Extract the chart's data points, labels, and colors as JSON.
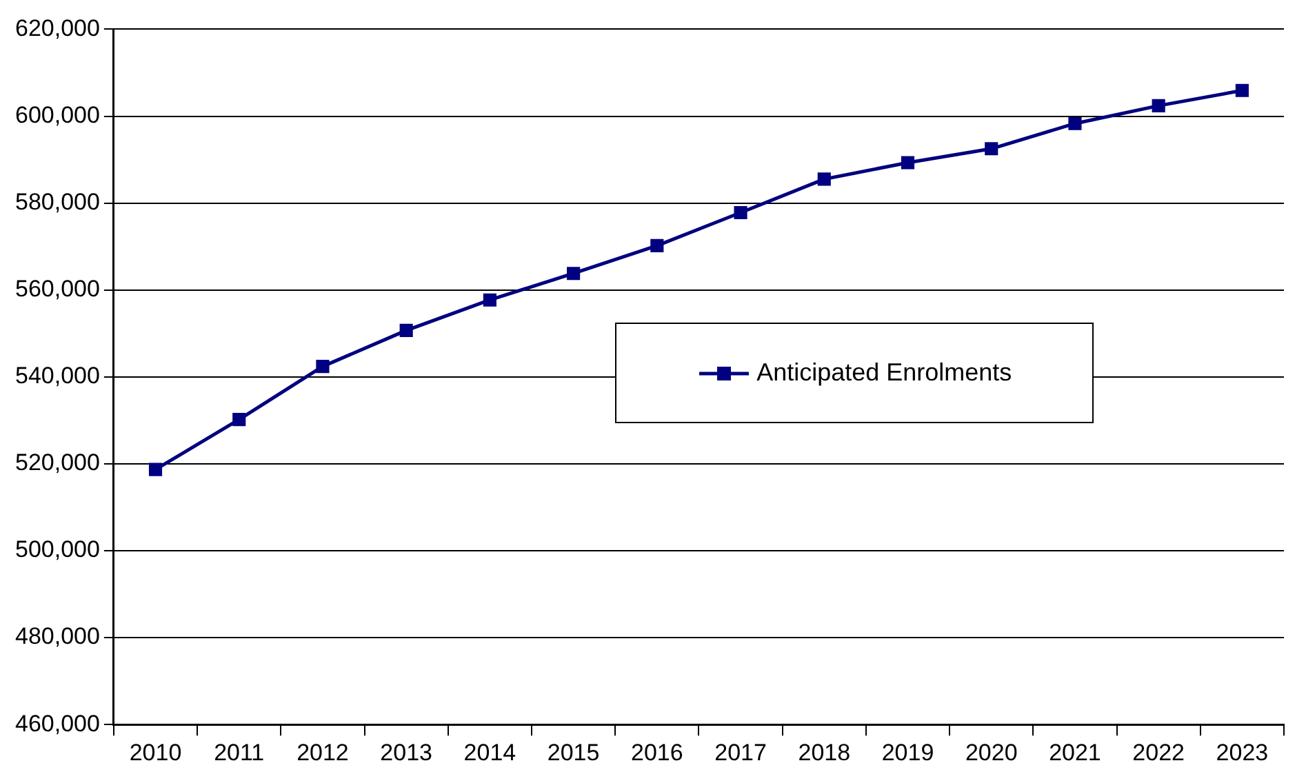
{
  "chart_data": {
    "type": "line",
    "categories": [
      "2010",
      "2011",
      "2012",
      "2013",
      "2014",
      "2015",
      "2016",
      "2017",
      "2018",
      "2019",
      "2020",
      "2021",
      "2022",
      "2023"
    ],
    "series": [
      {
        "name": "Anticipated Enrolments",
        "color": "#000080",
        "values": [
          518700,
          530200,
          542400,
          550700,
          557700,
          563800,
          570200,
          577800,
          585500,
          589300,
          592500,
          598300,
          602400,
          605900
        ]
      }
    ],
    "ylim": [
      460000,
      620000
    ],
    "yticks": [
      {
        "value": 460000,
        "label": "460,000"
      },
      {
        "value": 480000,
        "label": "480,000"
      },
      {
        "value": 500000,
        "label": "500,000"
      },
      {
        "value": 520000,
        "label": "520,000"
      },
      {
        "value": 540000,
        "label": "540,000"
      },
      {
        "value": 560000,
        "label": "560,000"
      },
      {
        "value": 580000,
        "label": "580,000"
      },
      {
        "value": 600000,
        "label": "600,000"
      },
      {
        "value": 620000,
        "label": "620,000"
      }
    ],
    "grid": "y",
    "legend": "center right",
    "marker": "square",
    "line_style": "solid"
  }
}
